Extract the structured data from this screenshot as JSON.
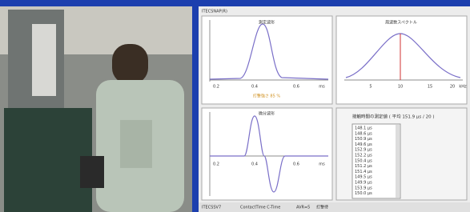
{
  "window_title": "ITECSNAP(R)",
  "panels": {
    "waveform": {
      "title": "測定波形",
      "x_labels": [
        "0.2",
        "0.4",
        "0.6",
        "ms"
      ],
      "note": "打撃強さ 85 %"
    },
    "spectrum": {
      "title": "周波数スペクトル",
      "x_labels": [
        "5",
        "10",
        "15",
        "20",
        "kHz"
      ]
    },
    "derivative": {
      "title": "微分波形",
      "x_labels": [
        "0.2",
        "0.4",
        "0.6",
        "ms"
      ]
    }
  },
  "measurements": {
    "heading": "接触時間の測定値 ( 平均 151.9 μs / 20 )",
    "items": [
      "148.1 μs",
      "148.6 μs",
      "150.9 μs",
      "149.6 μs",
      "152.9 μs",
      "152.2 μs",
      "150.4 μs",
      "151.2 μs",
      "151.4 μs",
      "149.5 μs",
      "149.9 μs",
      "153.9 μs",
      "150.0 μs"
    ]
  },
  "status_bar": [
    "ITECSSV7",
    "ContactTime C-Time",
    "AVR=5",
    "打撃待"
  ]
}
